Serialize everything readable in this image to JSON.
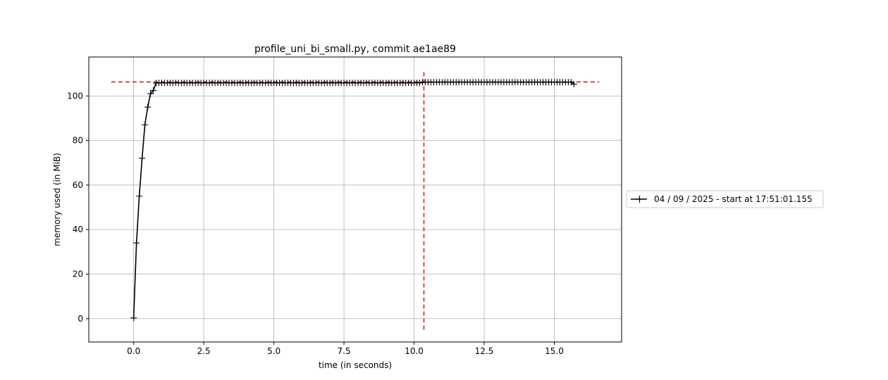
{
  "chart_data": {
    "type": "line",
    "title": "profile_uni_bi_small.py, commit ae1ae89",
    "xlabel": "time (in seconds)",
    "ylabel": "memory used (in MiB)",
    "xlim": [
      -1.6,
      17.4
    ],
    "ylim": [
      -10.5,
      117.5
    ],
    "xticks": [
      0.0,
      2.5,
      5.0,
      7.5,
      10.0,
      12.5,
      15.0
    ],
    "xtick_labels": [
      "0.0",
      "2.5",
      "5.0",
      "7.5",
      "10.0",
      "12.5",
      "15.0"
    ],
    "yticks": [
      0,
      20,
      40,
      60,
      80,
      100
    ],
    "ytick_labels": [
      "0",
      "20",
      "40",
      "60",
      "80",
      "100"
    ],
    "grid": true,
    "legend_position": "right-outside",
    "series": [
      {
        "name": "04 / 09 / 2025 - start at 17:51:01.155",
        "color": "#000000",
        "marker": "+",
        "ramp": {
          "x": [
            0.0,
            0.1,
            0.2,
            0.3,
            0.4,
            0.5,
            0.6,
            0.7,
            0.8
          ],
          "y": [
            0.3,
            34.0,
            55.0,
            72.0,
            87.0,
            95.0,
            101.0,
            102.5,
            105.8
          ]
        },
        "plateau": {
          "x_start": 0.9,
          "x_end_first": 10.2,
          "y_first": 105.9,
          "x_start_second": 10.3,
          "x_end": 15.6,
          "y_second": 106.2,
          "step": 0.1
        },
        "last_point": {
          "x": 15.7,
          "y": 105.3
        }
      }
    ],
    "reference_lines": [
      {
        "orientation": "horizontal",
        "y": 106.3,
        "x_from": -0.8,
        "x_to": 16.6,
        "color": "#e31a1c",
        "style": "dashed"
      },
      {
        "orientation": "vertical",
        "x": 10.35,
        "y_from": -5.0,
        "y_to": 111.5,
        "color": "#e31a1c",
        "style": "dashed"
      }
    ]
  }
}
